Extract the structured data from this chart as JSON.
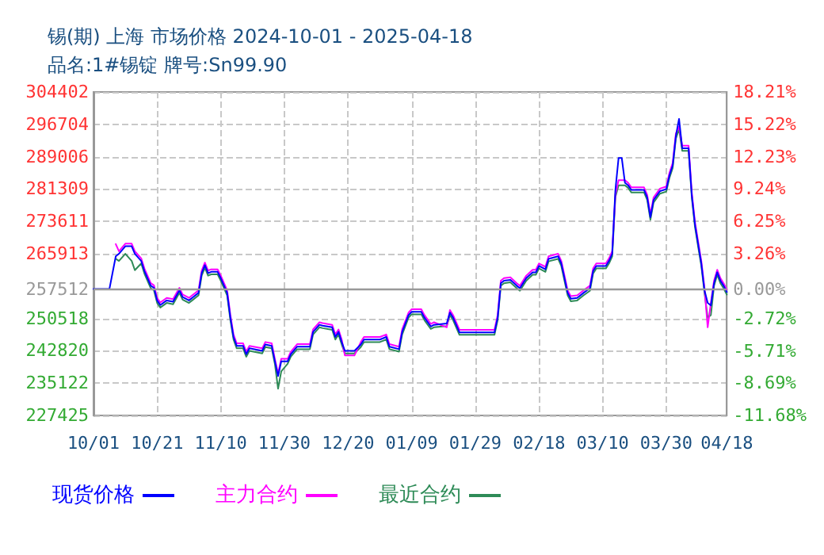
{
  "chart_data": {
    "type": "line",
    "title": "锡(期) 上海 市场价格 2024-10-01 - 2025-04-18",
    "subtitle": "品名:1#锡锭 牌号:Sn99.90",
    "x": [
      "2024-10-01",
      "2024-10-06",
      "2024-10-08",
      "2024-10-09",
      "2024-10-11",
      "2024-10-13",
      "2024-10-14",
      "2024-10-16",
      "2024-10-17",
      "2024-10-19",
      "2024-10-20",
      "2024-10-21",
      "2024-10-22",
      "2024-10-24",
      "2024-10-26",
      "2024-10-28",
      "2024-10-29",
      "2024-10-31",
      "2024-11-01",
      "2024-11-03",
      "2024-11-04",
      "2024-11-05",
      "2024-11-06",
      "2024-11-07",
      "2024-11-09",
      "2024-11-10",
      "2024-11-12",
      "2024-11-13",
      "2024-11-14",
      "2024-11-15",
      "2024-11-17",
      "2024-11-18",
      "2024-11-19",
      "2024-11-23",
      "2024-11-24",
      "2024-11-26",
      "2024-11-27",
      "2024-11-28",
      "2024-11-29",
      "2024-12-01",
      "2024-12-02",
      "2024-12-04",
      "2024-12-08",
      "2024-12-09",
      "2024-12-11",
      "2024-12-12",
      "2024-12-15",
      "2024-12-16",
      "2024-12-17",
      "2024-12-18",
      "2024-12-19",
      "2024-12-22",
      "2024-12-24",
      "2024-12-25",
      "2024-12-30",
      "2025-01-01",
      "2025-01-02",
      "2025-01-05",
      "2025-01-06",
      "2025-01-08",
      "2025-01-09",
      "2025-01-12",
      "2025-01-13",
      "2025-01-15",
      "2025-01-16",
      "2025-01-20",
      "2025-01-21",
      "2025-01-22",
      "2025-01-24",
      "2025-02-04",
      "2025-02-05",
      "2025-02-06",
      "2025-02-07",
      "2025-02-09",
      "2025-02-11",
      "2025-02-12",
      "2025-02-14",
      "2025-02-16",
      "2025-02-17",
      "2025-02-18",
      "2025-02-20",
      "2025-02-21",
      "2025-02-24",
      "2025-02-25",
      "2025-02-27",
      "2025-02-28",
      "2025-03-02",
      "2025-03-04",
      "2025-03-06",
      "2025-03-07",
      "2025-03-08",
      "2025-03-11",
      "2025-03-12",
      "2025-03-13",
      "2025-03-14",
      "2025-03-15",
      "2025-03-16",
      "2025-03-17",
      "2025-03-18",
      "2025-03-19",
      "2025-03-23",
      "2025-03-24",
      "2025-03-25",
      "2025-03-26",
      "2025-03-28",
      "2025-03-30",
      "2025-03-31",
      "2025-04-01",
      "2025-04-02",
      "2025-04-03",
      "2025-04-04",
      "2025-04-06",
      "2025-04-07",
      "2025-04-08",
      "2025-04-09",
      "2025-04-10",
      "2025-04-11",
      "2025-04-12",
      "2025-04-13",
      "2025-04-14",
      "2025-04-15",
      "2025-04-16",
      "2025-04-17",
      "2025-04-18"
    ],
    "series": [
      {
        "name": "现货价格",
        "color": "#0000ff",
        "values": [
          257500,
          257500,
          265300,
          265900,
          267700,
          267700,
          265900,
          264200,
          261800,
          258300,
          257800,
          254800,
          253700,
          254800,
          254500,
          257200,
          255600,
          254800,
          255400,
          256600,
          261300,
          263200,
          261300,
          261600,
          261600,
          260100,
          256600,
          250800,
          246100,
          244000,
          244000,
          242000,
          243400,
          242800,
          244300,
          244000,
          240300,
          236800,
          240300,
          240300,
          242000,
          243800,
          243800,
          247300,
          249000,
          248800,
          248400,
          246100,
          247300,
          244900,
          242800,
          242800,
          244300,
          245500,
          245500,
          246100,
          243800,
          243200,
          247300,
          251300,
          252100,
          252100,
          250700,
          248600,
          249000,
          249300,
          251900,
          250700,
          247200,
          247200,
          250700,
          258900,
          259500,
          259700,
          258300,
          257700,
          260100,
          261500,
          261500,
          263000,
          262200,
          264700,
          265300,
          263600,
          256600,
          255200,
          255400,
          256600,
          257700,
          261800,
          263000,
          263000,
          264200,
          265900,
          281100,
          288700,
          288700,
          282800,
          282200,
          281100,
          281100,
          279300,
          274600,
          278700,
          280800,
          281300,
          284600,
          286900,
          293900,
          298000,
          291000,
          291000,
          279900,
          272900,
          268200,
          263600,
          257200,
          254200,
          253600,
          258900,
          261500,
          259500,
          258300,
          256800
        ]
      },
      {
        "name": "主力合约",
        "color": "#ff00ff",
        "values": [
          null,
          null,
          268200,
          266500,
          268300,
          268300,
          266500,
          264800,
          262400,
          258900,
          258400,
          255400,
          254300,
          255400,
          255100,
          257800,
          256200,
          255400,
          256000,
          257200,
          261900,
          263800,
          261900,
          262200,
          262200,
          260700,
          257200,
          251400,
          246700,
          244600,
          244600,
          242600,
          244000,
          243400,
          244900,
          244600,
          240900,
          237400,
          240900,
          240900,
          242600,
          244400,
          244400,
          247900,
          249600,
          249400,
          249000,
          246700,
          247900,
          245500,
          241700,
          241700,
          244900,
          246100,
          246100,
          246700,
          244400,
          243800,
          247900,
          251900,
          252700,
          252700,
          251300,
          249200,
          249600,
          248400,
          252500,
          251300,
          247800,
          247800,
          251300,
          259500,
          260100,
          260300,
          258900,
          258300,
          260700,
          262100,
          262100,
          263600,
          262800,
          265300,
          265900,
          264200,
          257200,
          255800,
          256000,
          257200,
          258300,
          262400,
          263600,
          263600,
          264800,
          266500,
          280000,
          283400,
          283400,
          283400,
          282800,
          281700,
          281700,
          279900,
          275200,
          279300,
          281400,
          281900,
          285200,
          287500,
          294500,
          296200,
          291600,
          291600,
          280500,
          273500,
          268800,
          264200,
          257800,
          248400,
          254200,
          259500,
          262100,
          260100,
          258900,
          257400
        ]
      },
      {
        "name": "最近合约",
        "color": "#2e8b57",
        "values": [
          null,
          null,
          264700,
          264200,
          265900,
          264200,
          262000,
          263600,
          261200,
          257700,
          257200,
          254200,
          253100,
          254200,
          253900,
          256600,
          255000,
          254200,
          254800,
          256000,
          260700,
          262600,
          260700,
          261000,
          261000,
          259500,
          256000,
          250200,
          245500,
          243400,
          243400,
          241400,
          242800,
          242200,
          243700,
          243400,
          239700,
          233800,
          237900,
          239700,
          241400,
          243200,
          243200,
          246700,
          248400,
          248200,
          247800,
          245500,
          246700,
          244300,
          242200,
          242200,
          243700,
          244900,
          244900,
          245500,
          243200,
          242600,
          246700,
          250700,
          251500,
          251500,
          250100,
          248000,
          248400,
          248700,
          251300,
          250100,
          246600,
          246600,
          250100,
          258300,
          258900,
          259100,
          257700,
          257100,
          259500,
          260900,
          260900,
          262400,
          261600,
          264100,
          264700,
          263000,
          256000,
          254600,
          254800,
          256000,
          257100,
          261200,
          262400,
          262400,
          263600,
          265300,
          279400,
          282200,
          282200,
          282200,
          281600,
          280500,
          280500,
          278700,
          274000,
          278100,
          280200,
          280700,
          284000,
          286300,
          293300,
          295600,
          290400,
          290400,
          279300,
          272300,
          267600,
          263000,
          256600,
          250700,
          251300,
          258300,
          260900,
          258900,
          257700,
          256200
        ]
      }
    ],
    "xlim": [
      "2024-10-01",
      "2025-04-18"
    ],
    "xticks": [
      {
        "value": "2024-10-01",
        "label": "10/01"
      },
      {
        "value": "2024-10-21",
        "label": "10/21"
      },
      {
        "value": "2024-11-10",
        "label": "11/10"
      },
      {
        "value": "2024-11-30",
        "label": "11/30"
      },
      {
        "value": "2024-12-20",
        "label": "12/20"
      },
      {
        "value": "2025-01-09",
        "label": "01/09"
      },
      {
        "value": "2025-01-29",
        "label": "01/29"
      },
      {
        "value": "2025-02-18",
        "label": "02/18"
      },
      {
        "value": "2025-03-10",
        "label": "03/10"
      },
      {
        "value": "2025-03-30",
        "label": "03/30"
      },
      {
        "value": "2025-04-18",
        "label": "04/18"
      }
    ],
    "ylim": [
      227425,
      304402
    ],
    "yticks": [
      227425,
      235122,
      242820,
      250518,
      257512,
      265913,
      273611,
      281309,
      289006,
      296704,
      304402
    ],
    "y2lim": [
      -11.68,
      18.21
    ],
    "y2ticks": [
      {
        "value": -11.68,
        "label": "-11.68%"
      },
      {
        "value": -8.69,
        "label": "-8.69%"
      },
      {
        "value": -5.71,
        "label": "-5.71%"
      },
      {
        "value": -2.72,
        "label": "-2.72%"
      },
      {
        "value": 0,
        "label": "0.00%"
      },
      {
        "value": 3.26,
        "label": "3.26%"
      },
      {
        "value": 6.25,
        "label": "6.25%"
      },
      {
        "value": 9.24,
        "label": "9.24%"
      },
      {
        "value": 12.23,
        "label": "12.23%"
      },
      {
        "value": 15.22,
        "label": "15.22%"
      },
      {
        "value": 18.21,
        "label": "18.21%"
      }
    ],
    "ref_lines": [
      {
        "axis": "y",
        "value": 257512,
        "color": "#999999",
        "line_style": "solid"
      }
    ],
    "grid": true,
    "legend": "bottom",
    "marker": "none",
    "line_style": "solid"
  }
}
